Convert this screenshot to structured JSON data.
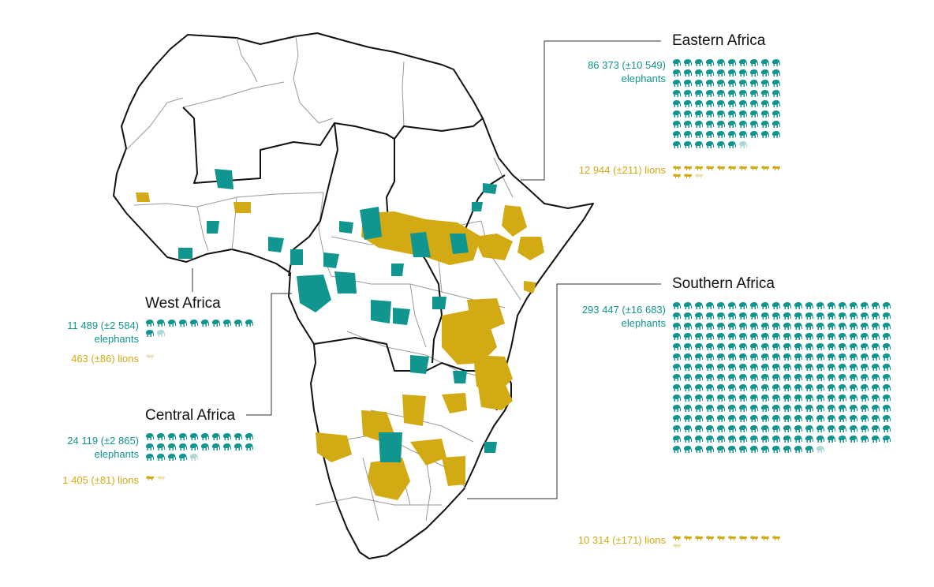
{
  "colors": {
    "elephant": "#11958f",
    "lion": "#d2aa13",
    "border": "#111111",
    "internal_border": "#9a9a9a"
  },
  "icons": {
    "elephant": "elephant-icon",
    "lion": "lion-icon"
  },
  "legend": {
    "elephants_unit_count": 1000,
    "lions_unit_count": 1000
  },
  "regions": [
    {
      "key": "west",
      "title": "West Africa",
      "elephants_text": "11 489 (±2 584)",
      "elephants_label": "elephants",
      "elephants": 11489,
      "lions_text": "463 (±86) lions",
      "lions": 463
    },
    {
      "key": "central",
      "title": "Central Africa",
      "elephants_text": "24 119 (±2 865)",
      "elephants_label": "elephants",
      "elephants": 24119,
      "lions_text": "1 405 (±81) lions",
      "lions": 1405
    },
    {
      "key": "eastern",
      "title": "Eastern Africa",
      "elephants_text": "86 373 (±10 549)",
      "elephants_label": "elephants",
      "elephants": 86373,
      "lions_text": "12 944 (±211) lions",
      "lions": 12944
    },
    {
      "key": "southern",
      "title": "Southern Africa",
      "elephants_text": "293 447 (±16 683)",
      "elephants_label": "elephants",
      "elephants": 293447,
      "lions_text": "10 314 (±171) lions",
      "lions": 10314
    }
  ]
}
